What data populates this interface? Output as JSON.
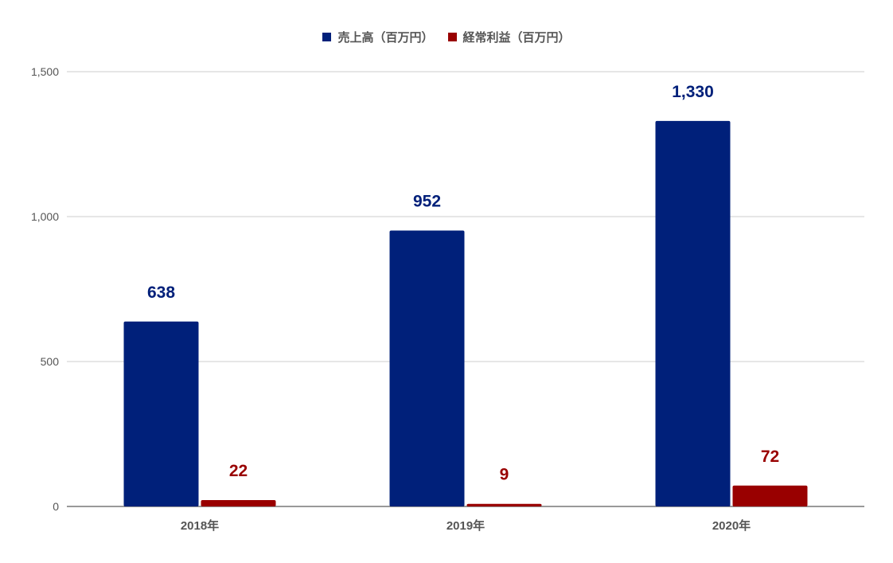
{
  "colors": {
    "sales": "#00207a",
    "profit": "#990000",
    "grid": "#cccccc",
    "axis": "#333333",
    "tick_text": "#555555"
  },
  "legend": {
    "items": [
      {
        "label": "売上高（百万円）",
        "color": "#00207a"
      },
      {
        "label": "経常利益（百万円）",
        "color": "#990000"
      }
    ]
  },
  "chart_data": {
    "type": "bar",
    "categories": [
      "2018年",
      "2019年",
      "2020年"
    ],
    "series": [
      {
        "name": "売上高（百万円）",
        "values": [
          638,
          952,
          1330
        ],
        "labels": [
          "638",
          "952",
          "1,330"
        ],
        "color": "#00207a"
      },
      {
        "name": "経常利益（百万円）",
        "values": [
          22,
          9,
          72
        ],
        "labels": [
          "22",
          "9",
          "72"
        ],
        "color": "#990000"
      }
    ],
    "yticks": [
      0,
      500,
      1000,
      1500
    ],
    "ytick_labels": [
      "0",
      "500",
      "1,000",
      "1,500"
    ],
    "ylim": [
      0,
      1500
    ],
    "grid": true,
    "legend_position": "top-center",
    "title": "",
    "xlabel": "",
    "ylabel": ""
  }
}
